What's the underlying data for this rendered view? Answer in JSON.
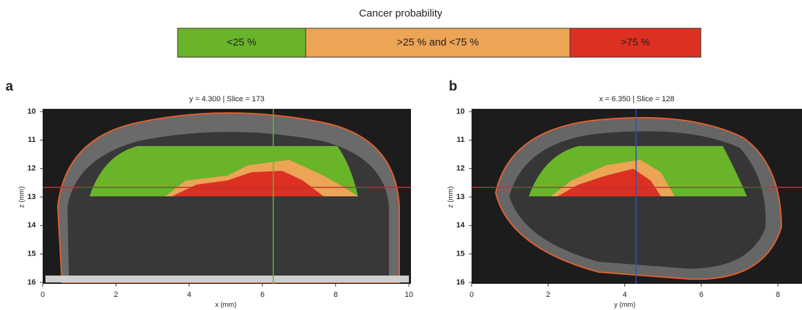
{
  "legend": {
    "title": "Cancer probability",
    "items": [
      {
        "label": "<25 %",
        "color": "#6ab42a"
      },
      {
        "label": ">25 % and <75 %",
        "color": "#eca455"
      },
      {
        "label": ">75 %",
        "color": "#dc3023"
      }
    ]
  },
  "panels": [
    {
      "label": "a",
      "title": "y = 4.300 | Slice = 173",
      "xlabel": "x (mm)",
      "ylabel": "z (mm)",
      "xlim": [
        0,
        10
      ],
      "ylim": [
        10,
        16
      ],
      "xticks": [
        0,
        2,
        4,
        6,
        8,
        10
      ],
      "yticks": [
        10,
        11,
        12,
        13,
        14,
        15,
        16
      ]
    },
    {
      "label": "b",
      "title": "x = 6.350 | Slice = 128",
      "xlabel": "y (mm)",
      "ylabel": "z (mm)",
      "xlim": [
        0,
        8
      ],
      "ylim": [
        10,
        16
      ],
      "xticks": [
        0,
        2,
        4,
        6,
        8
      ],
      "yticks": [
        10,
        11,
        12,
        13,
        14,
        15,
        16
      ]
    }
  ]
}
